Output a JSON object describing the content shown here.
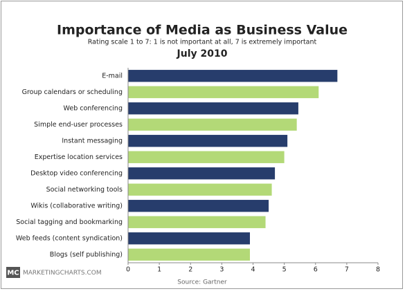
{
  "chart_data": {
    "type": "bar",
    "orientation": "horizontal",
    "title": "Importance of Media as Business Value",
    "subtitle": "Rating scale 1 to 7: 1 is not important at all, 7 is extremely important",
    "date": "July 2010",
    "source": "Source: Gartner",
    "logo": "MC",
    "site": "MARKETINGCHARTS.COM",
    "categories": [
      "E-mail",
      "Group calendars or scheduling",
      "Web conferencing",
      "Simple end-user processes",
      "Instant messaging",
      "Expertise location services",
      "Desktop video conferencing",
      "Social networking tools",
      "Wikis (collaborative writing)",
      "Social tagging and bookmarking",
      "Web feeds (content syndication)",
      "Blogs (self publishing)"
    ],
    "values": [
      6.7,
      6.1,
      5.45,
      5.4,
      5.1,
      5.0,
      4.7,
      4.6,
      4.5,
      4.4,
      3.9,
      3.9
    ],
    "colors": [
      "#273d6c",
      "#b3d977"
    ],
    "xlim": [
      0,
      8
    ],
    "xticks": [
      0,
      1,
      2,
      3,
      4,
      5,
      6,
      7,
      8
    ],
    "grid": false
  }
}
